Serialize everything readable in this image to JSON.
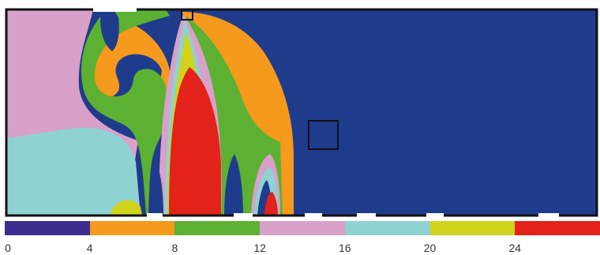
{
  "colorbar": {
    "colors": [
      "#3d2d8e",
      "#f59a1c",
      "#5cb132",
      "#d9a0c9",
      "#8fd2d2",
      "#cfd41b",
      "#e3221a"
    ],
    "tick_labels": [
      "0",
      "4",
      "8",
      "12",
      "16",
      "20",
      "24"
    ]
  },
  "field_colors": {
    "blue": "#1f3c8c",
    "pink": "#d9a0c9",
    "cyan": "#8fd2d2",
    "green": "#5cb132",
    "orange": "#f59a1c",
    "yellow": "#cfd41b",
    "red": "#e3221a"
  }
}
